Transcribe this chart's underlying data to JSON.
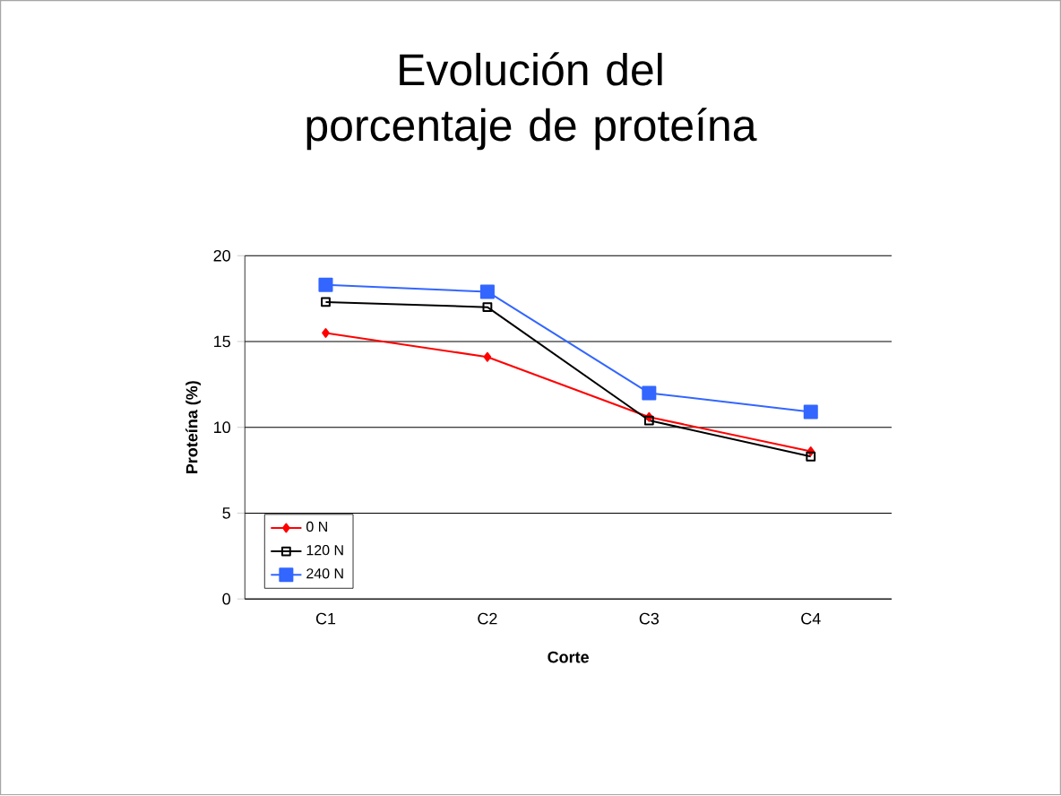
{
  "chart_data": {
    "type": "line",
    "title": "Evolución del porcentaje de proteína",
    "xlabel": "Corte",
    "ylabel": "Proteína (%)",
    "categories": [
      "C1",
      "C2",
      "C3",
      "C4"
    ],
    "series": [
      {
        "name": "0 N",
        "color": "#ff0000",
        "marker": "diamond",
        "values": [
          15.5,
          14.1,
          10.6,
          8.6
        ]
      },
      {
        "name": "120 N",
        "color": "#000000",
        "marker": "square",
        "values": [
          17.3,
          17.0,
          10.4,
          8.3
        ]
      },
      {
        "name": "240 N",
        "color": "#3366ff",
        "marker": "square*",
        "values": [
          18.3,
          17.9,
          12.0,
          10.9
        ]
      }
    ],
    "ylim": [
      0,
      20
    ],
    "yticks": [
      0,
      5,
      10,
      15,
      20
    ],
    "grid": "y",
    "legend": "bottom left"
  }
}
